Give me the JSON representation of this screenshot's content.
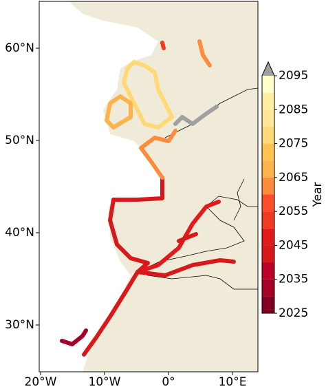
{
  "map": {
    "lat_ticks": [
      {
        "value": 60,
        "label": "60°N"
      },
      {
        "value": 50,
        "label": "50°N"
      },
      {
        "value": 40,
        "label": "40°N"
      },
      {
        "value": 30,
        "label": "30°N"
      }
    ],
    "lon_ticks": [
      {
        "value": -20,
        "label": "20°W"
      },
      {
        "value": -10,
        "label": "10°W"
      },
      {
        "value": 0,
        "label": "0°"
      },
      {
        "value": 10,
        "label": "10°E"
      }
    ]
  },
  "colorbar": {
    "label": "Year",
    "ticks": [
      2025,
      2035,
      2045,
      2055,
      2065,
      2075,
      2085,
      2095
    ],
    "colors": [
      "#800026",
      "#a50026",
      "#bd0026",
      "#d7191c",
      "#e31a1c",
      "#f03b20",
      "#fc4e2a",
      "#fd8d3c",
      "#feb24c",
      "#fec44f",
      "#fed976",
      "#ffe699",
      "#ffeda0",
      "#ffffcc"
    ],
    "extend_color": "#a0a0a0"
  }
}
